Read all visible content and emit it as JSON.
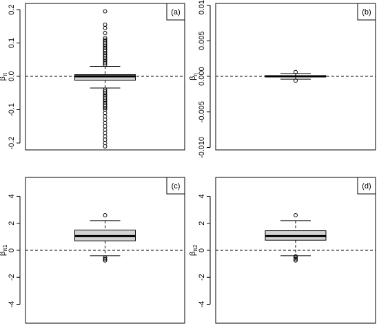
{
  "chart_data": [
    {
      "type": "box",
      "label": "(a)",
      "ylabel": "β",
      "ylabel_sub": "π",
      "ylim": [
        -0.2206,
        0.2186
      ],
      "yticks": [
        -0.2,
        -0.1,
        {
          "value": 0,
          "label": "0.0"
        },
        0.1,
        0.2
      ],
      "hline": 0,
      "whisker_low": -0.035,
      "q1": -0.012,
      "median": 0,
      "q3": 0.005,
      "whisker_high": 0.03,
      "outliers": [
        0.035,
        0.04,
        0.045,
        0.05,
        0.055,
        0.06,
        0.065,
        0.07,
        0.075,
        0.08,
        0.085,
        0.09,
        0.095,
        0.1,
        0.105,
        0.11,
        0.115,
        0.13,
        0.145,
        0.155,
        0.195,
        -0.04,
        -0.045,
        -0.05,
        -0.055,
        -0.06,
        -0.065,
        -0.07,
        -0.075,
        -0.08,
        -0.085,
        -0.09,
        -0.095,
        -0.1,
        -0.11,
        -0.12,
        -0.13,
        -0.14,
        -0.15,
        -0.16,
        -0.17,
        -0.18,
        -0.19,
        -0.2,
        -0.21
      ]
    },
    {
      "type": "box",
      "label": "(b)",
      "ylabel": "β",
      "ylabel_sub": "η",
      "ylim": [
        -0.01034,
        0.01024
      ],
      "yticks": [
        {
          "value": -0.01,
          "label": "-0.010"
        },
        {
          "value": -0.005,
          "label": "-0.005"
        },
        {
          "value": 0,
          "label": "0.000"
        },
        {
          "value": 0.005,
          "label": "0.005"
        },
        {
          "value": 0.01,
          "label": "0.010"
        }
      ],
      "hline": 0,
      "whisker_low": -0.0004,
      "q1": -0.0001,
      "median": 0,
      "q3": 0.0001,
      "whisker_high": 0.0004,
      "outliers": [
        0.0006,
        -0.0006
      ]
    },
    {
      "type": "box",
      "label": "(c)",
      "ylabel": "β",
      "ylabel_sub": "π1",
      "ylim": [
        -5.4,
        5.4
      ],
      "yticks": [
        -4,
        -2,
        0,
        2,
        4
      ],
      "hline": 0,
      "whisker_low": -0.4,
      "q1": 0.7,
      "median": 1.05,
      "q3": 1.5,
      "whisker_high": 2.2,
      "outliers": [
        2.6,
        -0.55,
        -0.65,
        -0.75
      ]
    },
    {
      "type": "box",
      "label": "(d)",
      "ylabel": "β",
      "ylabel_sub": "π2",
      "ylim": [
        -5.4,
        5.4
      ],
      "yticks": [
        -4,
        -2,
        0,
        2,
        4
      ],
      "hline": 0,
      "whisker_low": -0.4,
      "q1": 0.75,
      "median": 1.05,
      "q3": 1.45,
      "whisker_high": 2.2,
      "outliers": [
        2.6,
        -0.45,
        -0.55,
        -0.65,
        -0.75
      ]
    }
  ]
}
